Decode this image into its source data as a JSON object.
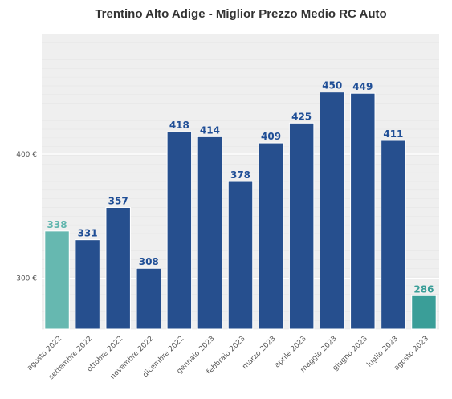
{
  "chart_data": {
    "type": "bar",
    "title": "Trentino Alto Adige - Miglior Prezzo Medio RC Auto",
    "xlabel": "",
    "ylabel": "",
    "categories": [
      "agosto 2022",
      "settembre 2022",
      "ottobre 2022",
      "novembre 2022",
      "dicembre 2022",
      "gennaio 2023",
      "febbraio 2023",
      "marzo 2023",
      "aprile 2023",
      "maggio 2023",
      "giugno 2023",
      "luglio 2023",
      "agosto 2023"
    ],
    "values": [
      338,
      331,
      357,
      308,
      418,
      414,
      378,
      409,
      425,
      450,
      449,
      411,
      286
    ],
    "value_labels": [
      "338",
      "331",
      "357",
      "308",
      "418",
      "414",
      "378",
      "409",
      "425",
      "450",
      "449",
      "411",
      "286"
    ],
    "bar_colors": [
      "#66b8b0",
      "#264f8e",
      "#264f8e",
      "#264f8e",
      "#264f8e",
      "#264f8e",
      "#264f8e",
      "#264f8e",
      "#264f8e",
      "#264f8e",
      "#264f8e",
      "#264f8e",
      "#3a9e98"
    ],
    "label_colors": [
      "#5fb5ad",
      "#1f4e96",
      "#1f4e96",
      "#1f4e96",
      "#1f4e96",
      "#1f4e96",
      "#1f4e96",
      "#1f4e96",
      "#1f4e96",
      "#1f4e96",
      "#1f4e96",
      "#1f4e96",
      "#3a9e98"
    ],
    "y_ticks": [
      300,
      400
    ],
    "y_tick_labels": [
      "300 €",
      "400 €"
    ],
    "ylim": [
      259,
      497
    ],
    "grid": true,
    "legend": "none",
    "background_color": "#efefef"
  }
}
